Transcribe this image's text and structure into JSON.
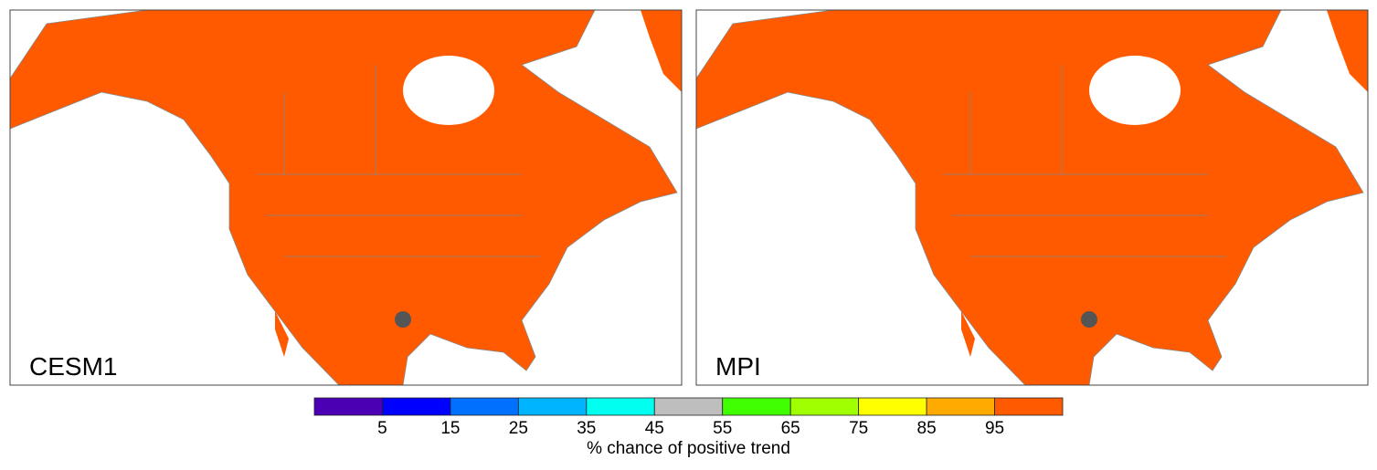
{
  "panels": [
    {
      "label": "CESM1"
    },
    {
      "label": "MPI"
    }
  ],
  "colorbar": {
    "colors": [
      "#4b00b4",
      "#0000ff",
      "#0070ff",
      "#00b4ff",
      "#00ffee",
      "#bebebe",
      "#40ff00",
      "#a0ff00",
      "#ffff00",
      "#ffaa00",
      "#ff5a00"
    ],
    "ticks": [
      5,
      15,
      25,
      35,
      45,
      55,
      65,
      75,
      85,
      95
    ],
    "label": "% chance of positive trend"
  }
}
